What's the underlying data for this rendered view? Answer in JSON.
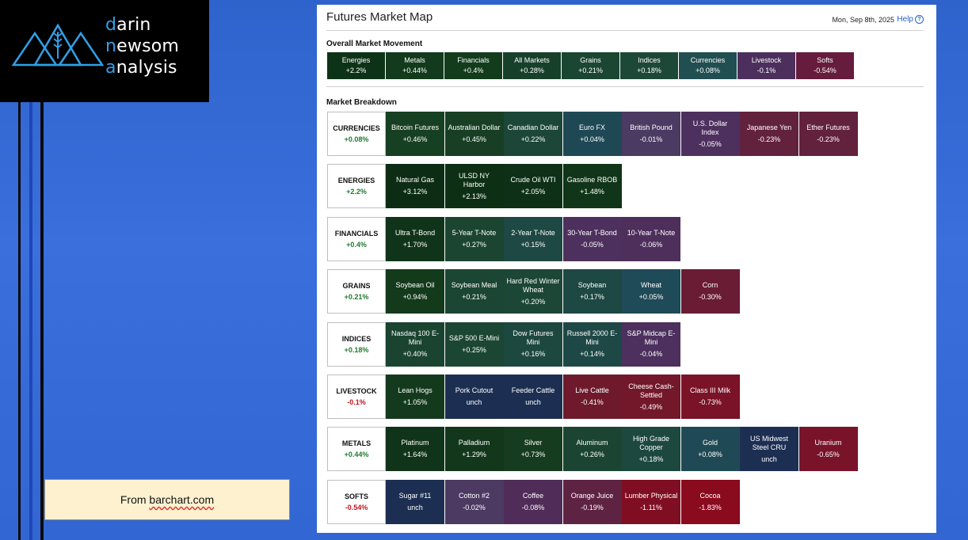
{
  "logo": {
    "lines": [
      [
        "d",
        "arin"
      ],
      [
        "n",
        "ewsom"
      ],
      [
        "a",
        "nalysis"
      ]
    ]
  },
  "caption": {
    "prefix": "From ",
    "link": "barchart.com"
  },
  "panel": {
    "title": "Futures Market Map",
    "date": "Mon, Sep 8th, 2025",
    "help": "Help",
    "overall_title": "Overall Market Movement",
    "breakdown_title": "Market Breakdown"
  },
  "overall": [
    {
      "name": "Energies",
      "change": "+2.2%",
      "color": "#0d3317"
    },
    {
      "name": "Metals",
      "change": "+0.44%",
      "color": "#123a1c"
    },
    {
      "name": "Financials",
      "change": "+0.4%",
      "color": "#123c1c"
    },
    {
      "name": "All Markets",
      "change": "+0.28%",
      "color": "#17402b"
    },
    {
      "name": "Grains",
      "change": "+0.21%",
      "color": "#1a4632"
    },
    {
      "name": "Indices",
      "change": "+0.18%",
      "color": "#1d4838"
    },
    {
      "name": "Currencies",
      "change": "+0.08%",
      "color": "#214e51"
    },
    {
      "name": "Livestock",
      "change": "-0.1%",
      "color": "#4c2f5c"
    },
    {
      "name": "Softs",
      "change": "-0.54%",
      "color": "#661c3c"
    }
  ],
  "breakdown": [
    {
      "name": "CURRENCIES",
      "change": "+0.08%",
      "positive": true,
      "items": [
        {
          "name": "Bitcoin Futures",
          "change": "+0.46%",
          "color": "#173f22"
        },
        {
          "name": "Australian Dollar",
          "change": "+0.45%",
          "color": "#183f24"
        },
        {
          "name": "Canadian Dollar",
          "change": "+0.22%",
          "color": "#1c4638"
        },
        {
          "name": "Euro FX",
          "change": "+0.04%",
          "color": "#1f4855"
        },
        {
          "name": "British Pound",
          "change": "-0.01%",
          "color": "#4b3a62"
        },
        {
          "name": "U.S. Dollar Index",
          "change": "-0.05%",
          "color": "#4d305e"
        },
        {
          "name": "Japanese Yen",
          "change": "-0.23%",
          "color": "#62213d"
        },
        {
          "name": "Ether Futures",
          "change": "-0.23%",
          "color": "#62213d"
        }
      ]
    },
    {
      "name": "ENERGIES",
      "change": "+2.2%",
      "positive": true,
      "items": [
        {
          "name": "Natural Gas",
          "change": "+3.12%",
          "color": "#0c2d14"
        },
        {
          "name": "ULSD NY Harbor",
          "change": "+2.13%",
          "color": "#0d3015"
        },
        {
          "name": "Crude Oil WTI",
          "change": "+2.05%",
          "color": "#0d3016"
        },
        {
          "name": "Gasoline RBOB",
          "change": "+1.48%",
          "color": "#103518"
        }
      ]
    },
    {
      "name": "FINANCIALS",
      "change": "+0.4%",
      "positive": true,
      "items": [
        {
          "name": "Ultra T-Bond",
          "change": "+1.70%",
          "color": "#10341a"
        },
        {
          "name": "5-Year T-Note",
          "change": "+0.27%",
          "color": "#1b4530"
        },
        {
          "name": "2-Year T-Note",
          "change": "+0.15%",
          "color": "#1e4843"
        },
        {
          "name": "30-Year T-Bond",
          "change": "-0.05%",
          "color": "#4d305e"
        },
        {
          "name": "10-Year T-Note",
          "change": "-0.06%",
          "color": "#4e2f5c"
        }
      ]
    },
    {
      "name": "GRAINS",
      "change": "+0.21%",
      "positive": true,
      "items": [
        {
          "name": "Soybean Oil",
          "change": "+0.94%",
          "color": "#143a1c"
        },
        {
          "name": "Soybean Meal",
          "change": "+0.21%",
          "color": "#1b4634"
        },
        {
          "name": "Hard Red Winter Wheat",
          "change": "+0.20%",
          "color": "#1c4636"
        },
        {
          "name": "Soybean",
          "change": "+0.17%",
          "color": "#1e4843"
        },
        {
          "name": "Wheat",
          "change": "+0.05%",
          "color": "#1f4a58"
        },
        {
          "name": "Corn",
          "change": "-0.30%",
          "color": "#691c34"
        }
      ]
    },
    {
      "name": "INDICES",
      "change": "+0.18%",
      "positive": true,
      "items": [
        {
          "name": "Nasdaq 100 E-Mini",
          "change": "+0.40%",
          "color": "#1a4430"
        },
        {
          "name": "S&P 500 E-Mini",
          "change": "+0.25%",
          "color": "#1b4634"
        },
        {
          "name": "Dow Futures Mini",
          "change": "+0.16%",
          "color": "#1d4840"
        },
        {
          "name": "Russell 2000 E-Mini",
          "change": "+0.14%",
          "color": "#1e4846"
        },
        {
          "name": "S&P Midcap E-Mini",
          "change": "-0.04%",
          "color": "#4d305e"
        }
      ]
    },
    {
      "name": "LIVESTOCK",
      "change": "-0.1%",
      "positive": false,
      "items": [
        {
          "name": "Lean Hogs",
          "change": "+1.05%",
          "color": "#133a1c"
        },
        {
          "name": "Pork Cutout",
          "change": "unch",
          "color": "#1c2f52"
        },
        {
          "name": "Feeder Cattle",
          "change": "unch",
          "color": "#1c2f52"
        },
        {
          "name": "Live Cattle",
          "change": "-0.41%",
          "color": "#6e1a2c"
        },
        {
          "name": "Cheese Cash-Settled",
          "change": "-0.49%",
          "color": "#73172a"
        },
        {
          "name": "Class III Milk",
          "change": "-0.73%",
          "color": "#7a1228"
        }
      ]
    },
    {
      "name": "METALS",
      "change": "+0.44%",
      "positive": true,
      "items": [
        {
          "name": "Platinum",
          "change": "+1.64%",
          "color": "#10341a"
        },
        {
          "name": "Palladium",
          "change": "+1.29%",
          "color": "#12371b"
        },
        {
          "name": "Silver",
          "change": "+0.73%",
          "color": "#163c1f"
        },
        {
          "name": "Aluminum",
          "change": "+0.26%",
          "color": "#1b4532"
        },
        {
          "name": "High Grade Copper",
          "change": "+0.18%",
          "color": "#1d4840"
        },
        {
          "name": "Gold",
          "change": "+0.08%",
          "color": "#1f4a55"
        },
        {
          "name": "US Midwest Steel CRU",
          "change": "unch",
          "color": "#1c2f52"
        },
        {
          "name": "Uranium",
          "change": "-0.65%",
          "color": "#78132a"
        }
      ]
    },
    {
      "name": "SOFTS",
      "change": "-0.54%",
      "positive": false,
      "items": [
        {
          "name": "Sugar #11",
          "change": "unch",
          "color": "#1c2f52"
        },
        {
          "name": "Cotton #2",
          "change": "-0.02%",
          "color": "#4c3a62"
        },
        {
          "name": "Coffee",
          "change": "-0.08%",
          "color": "#502c58"
        },
        {
          "name": "Orange Juice",
          "change": "-0.19%",
          "color": "#5e2342"
        },
        {
          "name": "Lumber Physical",
          "change": "-1.11%",
          "color": "#800e22"
        },
        {
          "name": "Cocoa",
          "change": "-1.83%",
          "color": "#8a0a1e"
        }
      ]
    }
  ]
}
